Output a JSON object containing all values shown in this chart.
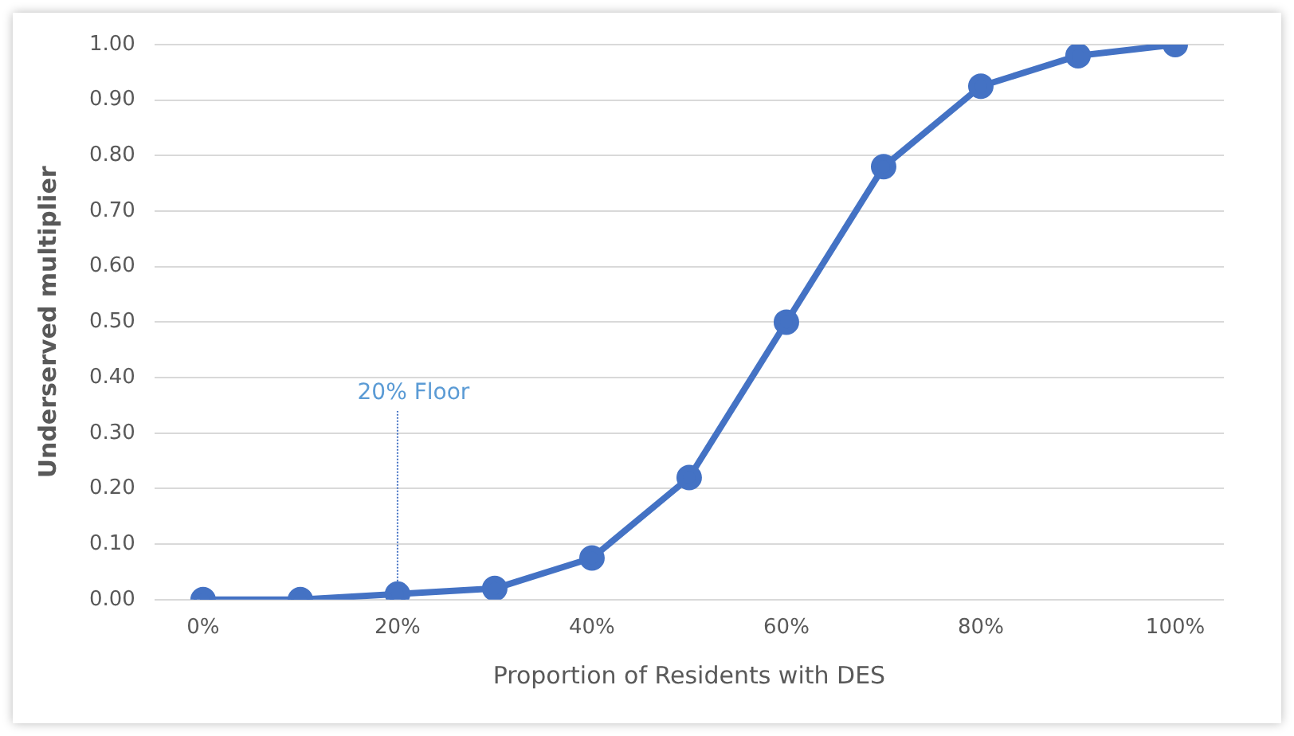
{
  "chart_data": {
    "type": "line",
    "xlabel": "Proportion of Residents with DES",
    "ylabel": "Underserved multiplier",
    "categories": [
      "0%",
      null,
      "20%",
      null,
      "40%",
      null,
      "60%",
      null,
      "80%",
      null,
      "100%"
    ],
    "series": [
      {
        "color": "#4472c4",
        "values": [
          0,
          0,
          0.01,
          0.02,
          0.075,
          0.22,
          0.5,
          0.78,
          0.925,
          0.98,
          1.0
        ]
      }
    ],
    "ylim": [
      0,
      1
    ],
    "yticks": [
      {
        "value": 0,
        "label": "0.00"
      },
      {
        "value": 0.1,
        "label": "0.10"
      },
      {
        "value": 0.2,
        "label": "0.20"
      },
      {
        "value": 0.3,
        "label": "0.30"
      },
      {
        "value": 0.4,
        "label": "0.40"
      },
      {
        "value": 0.5,
        "label": "0.50"
      },
      {
        "value": 0.6,
        "label": "0.60"
      },
      {
        "value": 0.7,
        "label": "0.70"
      },
      {
        "value": 0.8,
        "label": "0.80"
      },
      {
        "value": 0.9,
        "label": "0.90"
      },
      {
        "value": 1,
        "label": "1.00"
      }
    ],
    "annotations": [
      {
        "text": "20% Floor",
        "x": "20%",
        "y": 0.01
      }
    ],
    "grid": "y",
    "legend": false,
    "marker": "circle",
    "line_style": "solid"
  }
}
